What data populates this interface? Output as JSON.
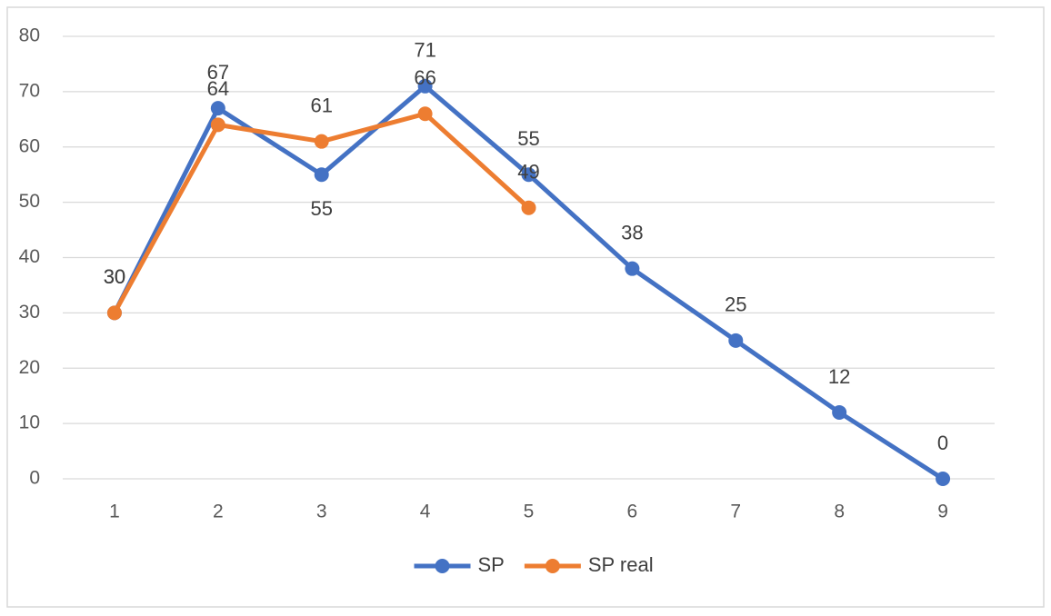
{
  "chart_data": {
    "type": "line",
    "categories": [
      "1",
      "2",
      "3",
      "4",
      "5",
      "6",
      "7",
      "8",
      "9"
    ],
    "series": [
      {
        "name": "SP",
        "color": "#4472c4",
        "values": [
          30,
          67,
          55,
          71,
          55,
          38,
          25,
          12,
          0
        ]
      },
      {
        "name": "SP real",
        "color": "#ed7d31",
        "values": [
          30,
          64,
          61,
          66,
          49,
          null,
          null,
          null,
          null
        ]
      }
    ],
    "ylim": [
      0,
      80
    ],
    "yticks": [
      0,
      10,
      20,
      30,
      40,
      50,
      60,
      70,
      80
    ],
    "grid": true,
    "legend": "bottom",
    "data_labels": true
  }
}
